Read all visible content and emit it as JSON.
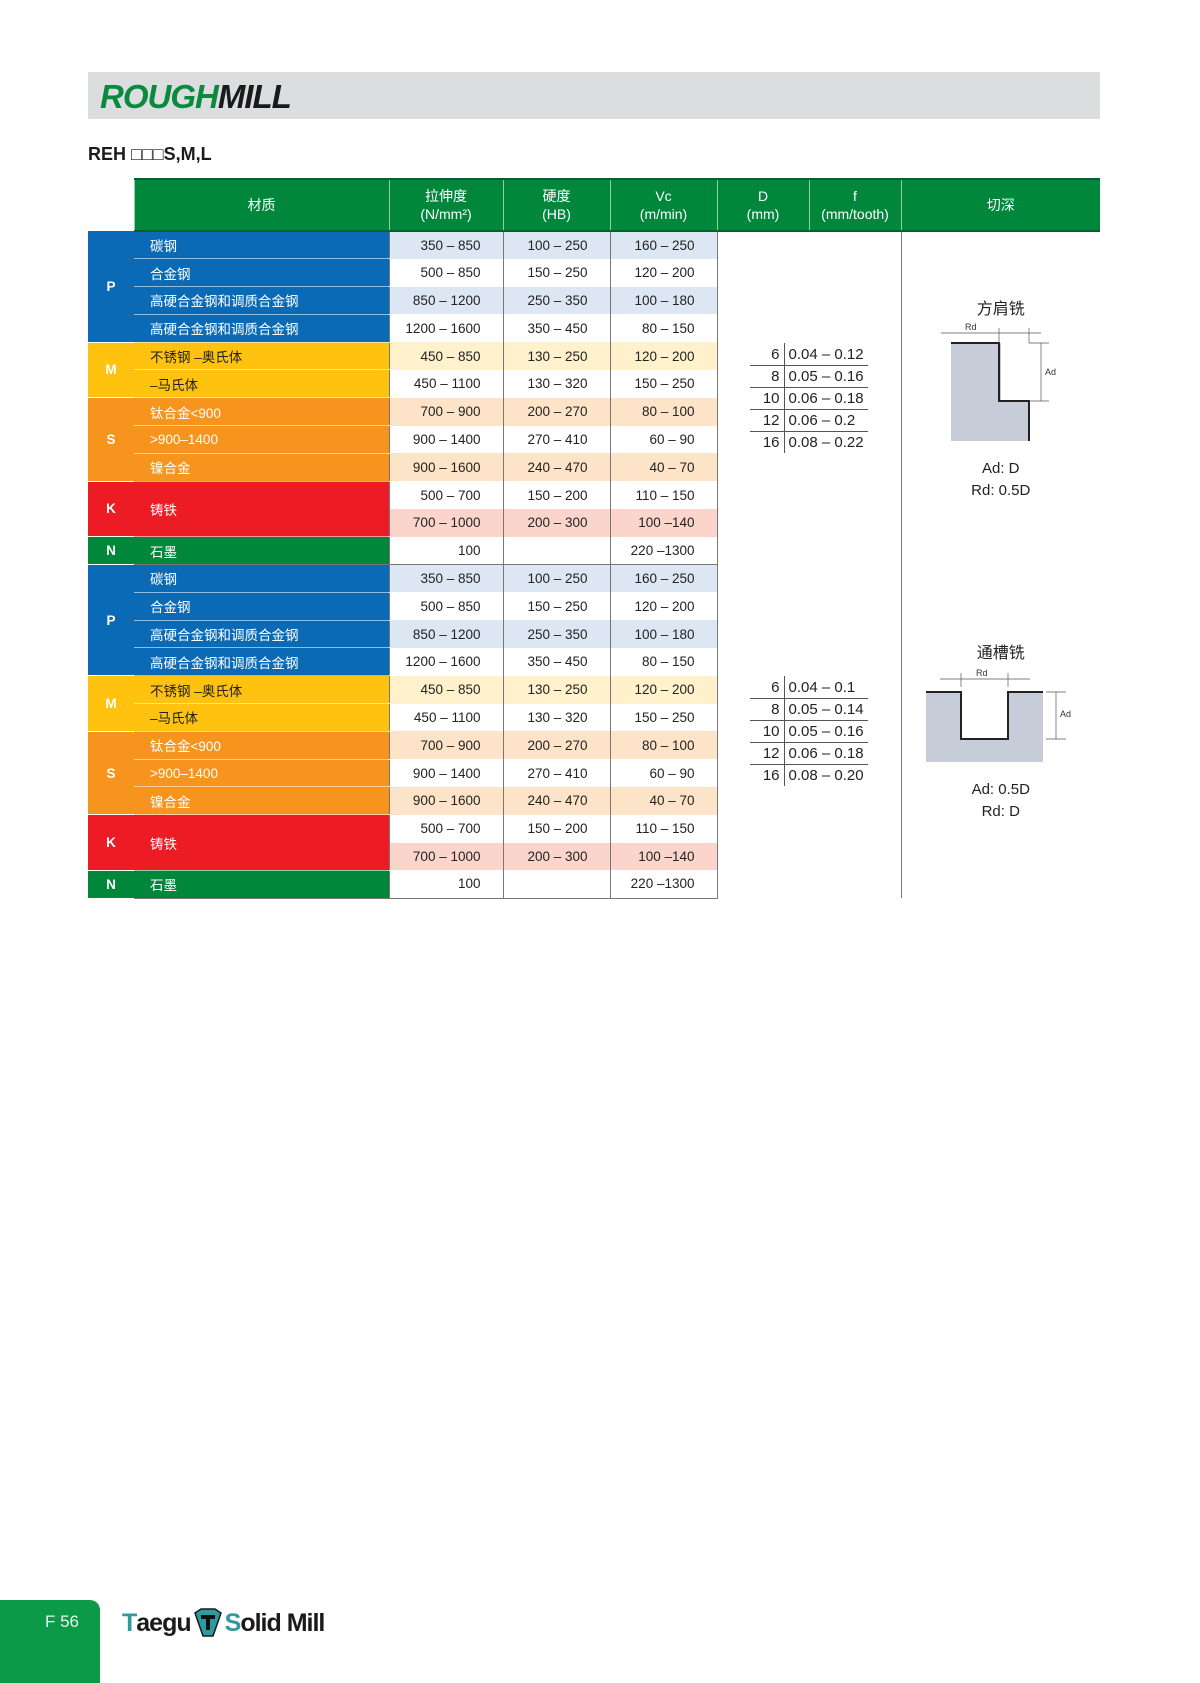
{
  "header": {
    "logo_part1": "ROUGH",
    "logo_part2": "MILL"
  },
  "subtitle": "REH □□□S,M,L",
  "columns": {
    "material": "材质",
    "tensile": "拉伸度",
    "tensile_unit": "(N/mm²)",
    "hardness": "硬度",
    "hardness_unit": "(HB)",
    "vc": "Vc",
    "vc_unit": "(m/min)",
    "d": "D",
    "d_unit": "(mm)",
    "f": "f",
    "f_unit": "(mm/tooth)",
    "depth": "切深"
  },
  "colors": {
    "P": "#0a6ab5",
    "M": "#ffc20e",
    "S": "#f7941d",
    "K": "#ed1c24",
    "N": "#00873c",
    "header": "#00873c"
  },
  "blocks": [
    {
      "groups": [
        {
          "letter": "P",
          "color": "#0a6ab5",
          "tints": [
            "#dde6f3",
            "#ffffff",
            "#dde6f3",
            "#ffffff"
          ],
          "rows": [
            {
              "material": "碳钢",
              "tensile": "350 – 850",
              "hardness": "100 – 250",
              "vc": "160 – 250"
            },
            {
              "material": "合金钢",
              "tensile": "500 – 850",
              "hardness": "150 – 250",
              "vc": "120 – 200"
            },
            {
              "material": "高硬合金钢和调质合金钢",
              "tensile": "850 – 1200",
              "hardness": "250 – 350",
              "vc": "100 – 180"
            },
            {
              "material": "高硬合金钢和调质合金钢",
              "tensile": "1200 – 1600",
              "hardness": "350 – 450",
              "vc": "80 – 150"
            }
          ]
        },
        {
          "letter": "M",
          "color": "#ffc20e",
          "tints": [
            "#fff1cc",
            "#ffffff"
          ],
          "text": "#222",
          "rows": [
            {
              "material": "不锈钢 –奥氏体",
              "tensile": "450 – 850",
              "hardness": "130 – 250",
              "vc": "120 – 200"
            },
            {
              "material": "–马氏体",
              "indent": true,
              "tensile": "450 – 1100",
              "hardness": "130 – 320",
              "vc": "150 – 250"
            }
          ]
        },
        {
          "letter": "S",
          "color": "#f7941d",
          "tints": [
            "#fde3c8",
            "#ffffff",
            "#fde3c8"
          ],
          "rows": [
            {
              "material": "钛合金<900",
              "tensile": "700 – 900",
              "hardness": "200 – 270",
              "vc": "80 – 100"
            },
            {
              "material": ">900–1400",
              "indent": true,
              "tensile": "900 – 1400",
              "hardness": "270 – 410",
              "vc": "60 – 90"
            },
            {
              "material": "镍合金",
              "tensile": "900 – 1600",
              "hardness": "240 – 470",
              "vc": "40 – 70"
            }
          ]
        },
        {
          "letter": "K",
          "color": "#ed1c24",
          "tints": [
            "#ffffff",
            "#fbd5cc"
          ],
          "merged": true,
          "rows": [
            {
              "material": "铸铁",
              "tensile": "500 – 700",
              "hardness": "150 – 200",
              "vc": "110 – 150"
            },
            {
              "material": "",
              "tensile": "700 – 1000",
              "hardness": "200 – 300",
              "vc": "100 –140"
            }
          ]
        },
        {
          "letter": "N",
          "color": "#00873c",
          "tints": [
            "#ffffff"
          ],
          "rows": [
            {
              "material": "石墨",
              "tensile": "100",
              "hardness": "",
              "vc": "220 –1300"
            }
          ]
        }
      ],
      "feeds": [
        {
          "d": "6",
          "f": "0.04 – 0.12"
        },
        {
          "d": "8",
          "f": "0.05 – 0.16"
        },
        {
          "d": "10",
          "f": "0.06 – 0.18"
        },
        {
          "d": "12",
          "f": "0.06 – 0.2"
        },
        {
          "d": "16",
          "f": "0.08 – 0.22"
        }
      ],
      "depth": {
        "title": "方肩铣",
        "rd_label": "Rd",
        "ad_label": "Ad",
        "ad": "Ad: D",
        "rd": "Rd: 0.5D",
        "type": "shoulder"
      }
    },
    {
      "groups": [
        {
          "letter": "P",
          "color": "#0a6ab5",
          "tints": [
            "#dde6f3",
            "#ffffff",
            "#dde6f3",
            "#ffffff"
          ],
          "rows": [
            {
              "material": "碳钢",
              "tensile": "350 – 850",
              "hardness": "100 – 250",
              "vc": "160 – 250"
            },
            {
              "material": "合金钢",
              "tensile": "500 – 850",
              "hardness": "150 – 250",
              "vc": "120 – 200"
            },
            {
              "material": "高硬合金钢和调质合金钢",
              "tensile": "850 – 1200",
              "hardness": "250 – 350",
              "vc": "100 – 180"
            },
            {
              "material": "高硬合金钢和调质合金钢",
              "tensile": "1200 – 1600",
              "hardness": "350 – 450",
              "vc": "80 – 150"
            }
          ]
        },
        {
          "letter": "M",
          "color": "#ffc20e",
          "tints": [
            "#fff1cc",
            "#ffffff"
          ],
          "text": "#222",
          "rows": [
            {
              "material": "不锈钢 –奥氏体",
              "tensile": "450 – 850",
              "hardness": "130 – 250",
              "vc": "120 – 200"
            },
            {
              "material": "–马氏体",
              "indent": true,
              "tensile": "450 – 1100",
              "hardness": "130 – 320",
              "vc": "150 – 250"
            }
          ]
        },
        {
          "letter": "S",
          "color": "#f7941d",
          "tints": [
            "#fde3c8",
            "#ffffff",
            "#fde3c8"
          ],
          "rows": [
            {
              "material": "钛合金<900",
              "tensile": "700 – 900",
              "hardness": "200 – 270",
              "vc": "80 – 100"
            },
            {
              "material": ">900–1400",
              "indent": true,
              "tensile": "900 – 1400",
              "hardness": "270 – 410",
              "vc": "60 – 90"
            },
            {
              "material": "镍合金",
              "tensile": "900 – 1600",
              "hardness": "240 – 470",
              "vc": "40 – 70"
            }
          ]
        },
        {
          "letter": "K",
          "color": "#ed1c24",
          "tints": [
            "#ffffff",
            "#fbd5cc"
          ],
          "merged": true,
          "rows": [
            {
              "material": "铸铁",
              "tensile": "500 – 700",
              "hardness": "150 – 200",
              "vc": "110 – 150"
            },
            {
              "material": "",
              "tensile": "700 – 1000",
              "hardness": "200 – 300",
              "vc": "100 –140"
            }
          ]
        },
        {
          "letter": "N",
          "color": "#00873c",
          "tints": [
            "#ffffff"
          ],
          "rows": [
            {
              "material": "石墨",
              "tensile": "100",
              "hardness": "",
              "vc": "220 –1300"
            }
          ]
        }
      ],
      "feeds": [
        {
          "d": "6",
          "f": "0.04 – 0.1"
        },
        {
          "d": "8",
          "f": "0.05 – 0.14"
        },
        {
          "d": "10",
          "f": "0.05 – 0.16"
        },
        {
          "d": "12",
          "f": "0.06 – 0.18"
        },
        {
          "d": "16",
          "f": "0.08 – 0.20"
        }
      ],
      "depth": {
        "title": "通槽铣",
        "rd_label": "Rd",
        "ad_label": "Ad",
        "ad": "Ad: 0.5D",
        "rd": "Rd: D",
        "type": "slot"
      }
    }
  ],
  "footer": {
    "page": "F 56",
    "brand_1": "T",
    "brand_2": "aegu",
    "brand_logo": "T",
    "brand_3": "S",
    "brand_4": "olid Mill"
  }
}
